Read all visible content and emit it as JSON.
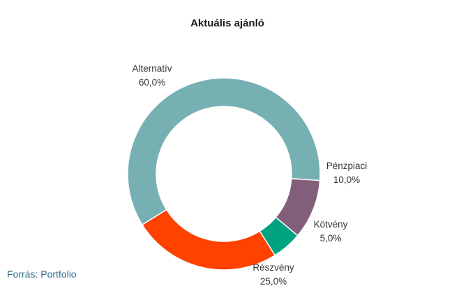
{
  "chart_data": {
    "type": "donut",
    "title": "Aktuális ajánló",
    "slices": [
      {
        "name": "Alternatív",
        "value": 60.0,
        "label": "60,0%",
        "color": "#77b0b3"
      },
      {
        "name": "Pénzpiaci",
        "value": 10.0,
        "label": "10,0%",
        "color": "#835e7a"
      },
      {
        "name": "Kötvény",
        "value": 5.0,
        "label": "5,0%",
        "color": "#00a37f"
      },
      {
        "name": "Részvény",
        "value": 25.0,
        "label": "25,0%",
        "color": "#ff4200"
      }
    ]
  },
  "source": "Forrás: Portfolio"
}
